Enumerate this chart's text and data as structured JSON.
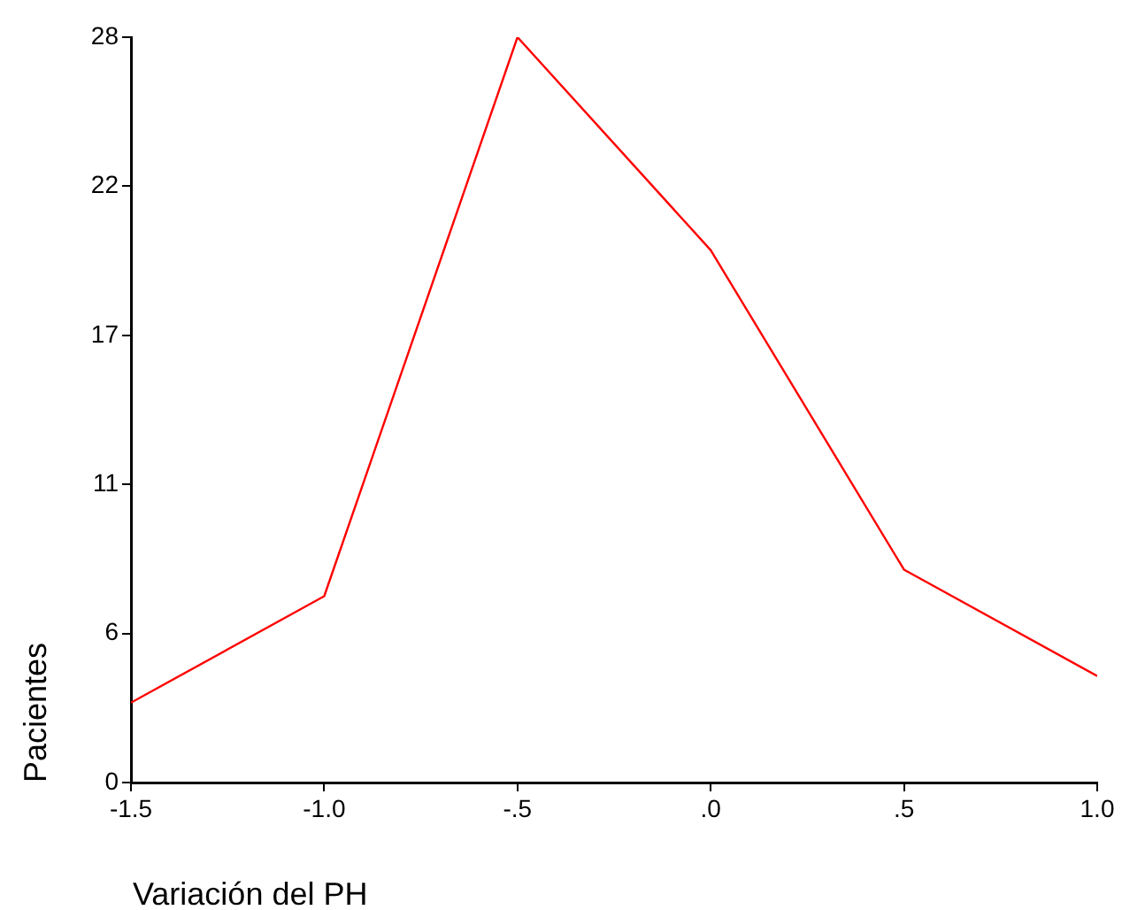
{
  "chart_data": {
    "type": "line",
    "xlabel": "Variación del PH",
    "ylabel": "Pacientes",
    "x": [
      -1.5,
      -1.0,
      -0.5,
      0.0,
      0.5,
      1.0
    ],
    "series": [
      {
        "color": "#ff0000",
        "values": [
          3,
          7,
          28,
          20,
          8,
          4
        ]
      }
    ],
    "xlim": [
      -1.5,
      1.0
    ],
    "xticks": [
      {
        "value": -1.5,
        "label": "-1.5"
      },
      {
        "value": -1.0,
        "label": "-1.0"
      },
      {
        "value": -0.5,
        "label": "-.5"
      },
      {
        "value": 0,
        "label": ".0"
      },
      {
        "value": 0.5,
        "label": ".5"
      },
      {
        "value": 1.0,
        "label": "1.0"
      }
    ],
    "ylim": [
      0,
      28
    ],
    "yticks": [
      0,
      {
        "value": 5.6,
        "label": "6"
      },
      {
        "value": 11.2,
        "label": "11"
      },
      {
        "value": 16.8,
        "label": "17"
      },
      {
        "value": 22.4,
        "label": "22"
      },
      28
    ],
    "grid": false,
    "legend": false,
    "marker": "none",
    "line_style": "solid"
  }
}
